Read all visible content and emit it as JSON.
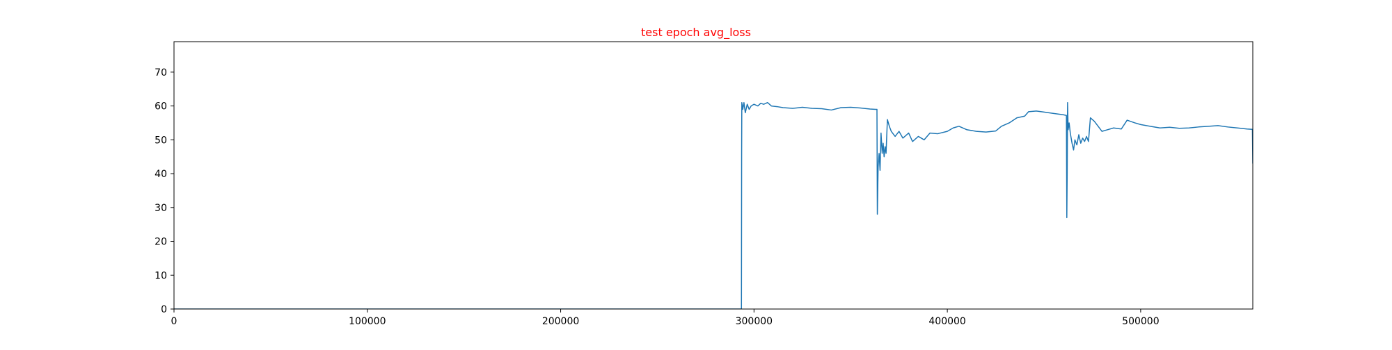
{
  "chart_data": {
    "type": "line",
    "title": "test epoch avg_loss",
    "title_color": "#ff0000",
    "line_color": "#1f77b4",
    "xlabel": "",
    "ylabel": "",
    "xlim": [
      0,
      558000
    ],
    "ylim": [
      0,
      79
    ],
    "grid": false,
    "xticks": [
      0,
      100000,
      200000,
      300000,
      400000,
      500000
    ],
    "yticks": [
      0,
      10,
      20,
      30,
      40,
      50,
      60,
      70
    ],
    "series": [
      {
        "points": [
          [
            0,
            0
          ],
          [
            293500,
            0
          ],
          [
            293600,
            45
          ],
          [
            293700,
            61
          ],
          [
            294200,
            59
          ],
          [
            294800,
            61
          ],
          [
            295500,
            58
          ],
          [
            296500,
            60.5
          ],
          [
            297500,
            59
          ],
          [
            298500,
            60
          ],
          [
            300000,
            60.5
          ],
          [
            302000,
            60
          ],
          [
            303500,
            60.8
          ],
          [
            305000,
            60.5
          ],
          [
            307000,
            61
          ],
          [
            309000,
            60
          ],
          [
            312000,
            59.8
          ],
          [
            315000,
            59.5
          ],
          [
            320000,
            59.3
          ],
          [
            325000,
            59.6
          ],
          [
            330000,
            59.3
          ],
          [
            335000,
            59.2
          ],
          [
            340000,
            58.8
          ],
          [
            345000,
            59.5
          ],
          [
            350000,
            59.6
          ],
          [
            355000,
            59.4
          ],
          [
            360000,
            59.1
          ],
          [
            363000,
            59
          ],
          [
            363600,
            59
          ],
          [
            363800,
            28
          ],
          [
            364200,
            42
          ],
          [
            364700,
            46
          ],
          [
            365200,
            41
          ],
          [
            365700,
            52
          ],
          [
            366300,
            46
          ],
          [
            366800,
            49
          ],
          [
            367300,
            45
          ],
          [
            367800,
            48
          ],
          [
            368300,
            46
          ],
          [
            369000,
            56
          ],
          [
            370000,
            54
          ],
          [
            371000,
            52.5
          ],
          [
            373000,
            51
          ],
          [
            375000,
            52.5
          ],
          [
            377000,
            50.5
          ],
          [
            380000,
            52
          ],
          [
            382000,
            49.5
          ],
          [
            385000,
            51
          ],
          [
            388000,
            50
          ],
          [
            391000,
            52
          ],
          [
            395000,
            51.8
          ],
          [
            400000,
            52.5
          ],
          [
            403000,
            53.5
          ],
          [
            406000,
            54
          ],
          [
            410000,
            53
          ],
          [
            415000,
            52.5
          ],
          [
            420000,
            52.3
          ],
          [
            425000,
            52.6
          ],
          [
            428000,
            54
          ],
          [
            432000,
            55
          ],
          [
            436000,
            56.5
          ],
          [
            440000,
            57
          ],
          [
            442000,
            58.3
          ],
          [
            446000,
            58.5
          ],
          [
            450000,
            58.2
          ],
          [
            455000,
            57.8
          ],
          [
            460000,
            57.4
          ],
          [
            461600,
            57.2
          ],
          [
            461800,
            27
          ],
          [
            462000,
            40
          ],
          [
            462200,
            61
          ],
          [
            462500,
            53
          ],
          [
            463000,
            55
          ],
          [
            463600,
            52
          ],
          [
            464500,
            49
          ],
          [
            465300,
            47
          ],
          [
            466000,
            50
          ],
          [
            467000,
            48.5
          ],
          [
            468000,
            51.5
          ],
          [
            469000,
            49
          ],
          [
            470000,
            50.5
          ],
          [
            471000,
            49.5
          ],
          [
            472000,
            51
          ],
          [
            473000,
            49.5
          ],
          [
            474000,
            56.5
          ],
          [
            476000,
            55.5
          ],
          [
            478000,
            54
          ],
          [
            480000,
            52.5
          ],
          [
            483000,
            53
          ],
          [
            486000,
            53.5
          ],
          [
            490000,
            53.2
          ],
          [
            493000,
            55.8
          ],
          [
            497000,
            55
          ],
          [
            500000,
            54.5
          ],
          [
            505000,
            54
          ],
          [
            510000,
            53.5
          ],
          [
            515000,
            53.7
          ],
          [
            520000,
            53.4
          ],
          [
            525000,
            53.5
          ],
          [
            530000,
            53.8
          ],
          [
            535000,
            54
          ],
          [
            540000,
            54.2
          ],
          [
            545000,
            53.8
          ],
          [
            550000,
            53.5
          ],
          [
            555000,
            53.2
          ],
          [
            557800,
            53.1
          ],
          [
            558000,
            43
          ]
        ]
      }
    ]
  }
}
